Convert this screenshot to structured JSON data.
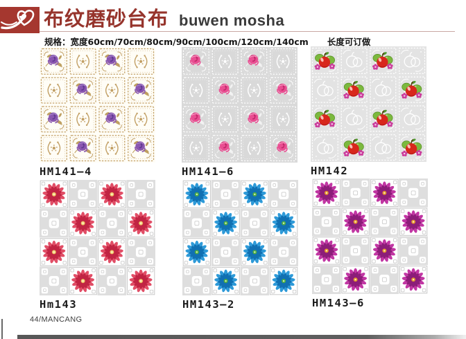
{
  "header": {
    "logo_icon": "heart-swoosh",
    "logo_bg": "#a5372f",
    "title_cn": "布纹磨砂台布",
    "title_en": "buwen mosha",
    "title_color": "#96342c",
    "spec_label": "规格：",
    "spec_sizes": "宽度60cm/70cm/80cm/90cm/100cm/120cm/140cm",
    "spec_note": "长度可订做"
  },
  "products": [
    {
      "code": "HM141—4",
      "style": "lace",
      "description": "gold lace tiles with purple roses",
      "colors": {
        "tile": "#fffdf6",
        "lace": "#c2a066",
        "leaf": "#bfa061",
        "flower": "#8a57b0",
        "flower_dark": "#5e3790",
        "flower_hi": "#b592d6"
      }
    },
    {
      "code": "HM141—6",
      "style": "lace",
      "description": "grey tiles with white lace and pink roses",
      "colors": {
        "tile": "#d9d9d9",
        "lace": "#ffffff",
        "leaf": "#f2f2f2",
        "flower": "#e94e92",
        "flower_dark": "#c02567",
        "flower_hi": "#ffaed0"
      }
    },
    {
      "code": "HM142",
      "style": "fruit",
      "description": "grey lace tiles with red and green apples",
      "colors": {
        "tile": "#e3e3e3",
        "lace": "#ffffff",
        "apple": "#d8271c",
        "apple_hi": "#ffd9cf",
        "apple_shade": "#9f1410",
        "pear": "#7cb93e",
        "pear_dark": "#5a9428",
        "stem": "#5f3317",
        "leaf": "#4f9b2d",
        "blossom": "#cb3c9c",
        "blossom_center": "#f5d0e8"
      }
    },
    {
      "code": "Hm143",
      "style": "check",
      "description": "checkerboard with red gerbera daisies",
      "colors": {
        "tile": "#ffffff",
        "alt": "#dedede",
        "frame": "#c7c7c7",
        "petal": "#e14e66",
        "petal_dark": "#c12443",
        "center": "#f2cf6e"
      }
    },
    {
      "code": "HM143—2",
      "style": "check",
      "description": "checkerboard with blue gerbera daisies",
      "colors": {
        "tile": "#ffffff",
        "alt": "#dedede",
        "frame": "#c7c7c7",
        "petal": "#2e9ad8",
        "petal_dark": "#1170b2",
        "center": "#54b23c"
      }
    },
    {
      "code": "HM143—6",
      "style": "check",
      "description": "checkerboard with magenta gerbera daisies",
      "colors": {
        "tile": "#ffffff",
        "alt": "#dedede",
        "frame": "#c7c7c7",
        "petal": "#c136a3",
        "petal_dark": "#8c1d79",
        "center": "#e79b2b"
      }
    }
  ],
  "footer": {
    "page_label": "44/MANCANG"
  }
}
